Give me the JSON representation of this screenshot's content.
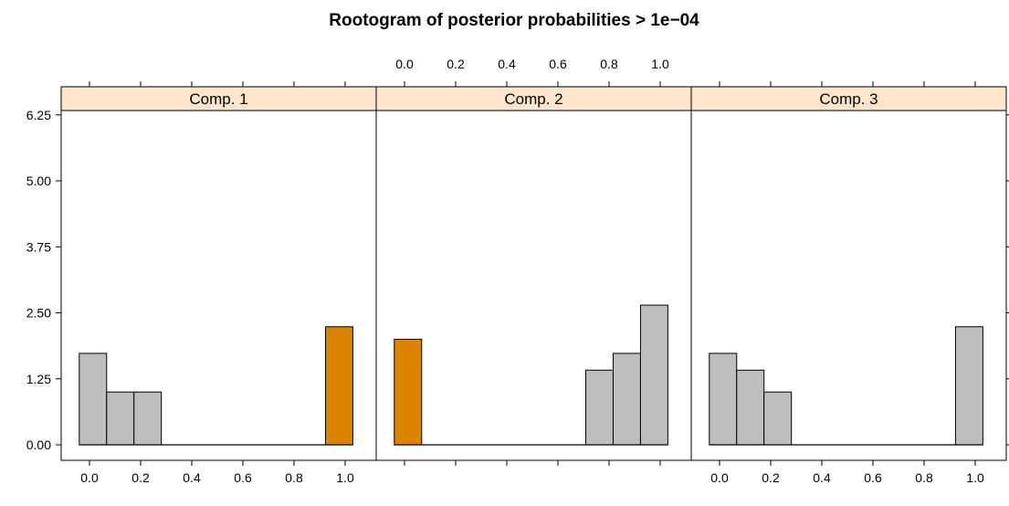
{
  "chart_data": {
    "type": "bar",
    "title": "Rootogram of posterior probabilities > 1e−04",
    "scale": "square-root",
    "x_ticks": [
      "0.0",
      "0.2",
      "0.4",
      "0.6",
      "0.8",
      "1.0"
    ],
    "y_ticks": [
      "0.00",
      "1.25",
      "2.50",
      "3.75",
      "5.00",
      "6.25"
    ],
    "x_bins": [
      "0.0-0.1",
      "0.1-0.2",
      "0.2-0.3",
      "0.3-0.4",
      "0.4-0.5",
      "0.5-0.6",
      "0.6-0.7",
      "0.7-0.8",
      "0.8-0.9",
      "0.9-1.0"
    ],
    "panels": [
      {
        "strip": "Comp. 1",
        "values": [
          3,
          1,
          1,
          0,
          0,
          0,
          0,
          0,
          0,
          5
        ],
        "highlight_bin": 9
      },
      {
        "strip": "Comp. 2",
        "values": [
          4,
          0,
          0,
          0,
          0,
          0,
          0,
          2,
          3,
          7
        ],
        "highlight_bin": 0
      },
      {
        "strip": "Comp. 3",
        "values": [
          3,
          2,
          1,
          0,
          0,
          0,
          0,
          0,
          0,
          5
        ],
        "highlight_bin": null
      }
    ],
    "colors": {
      "bar": "#bebebe",
      "highlight": "#db8400",
      "strip": "#ffe5cc"
    }
  }
}
